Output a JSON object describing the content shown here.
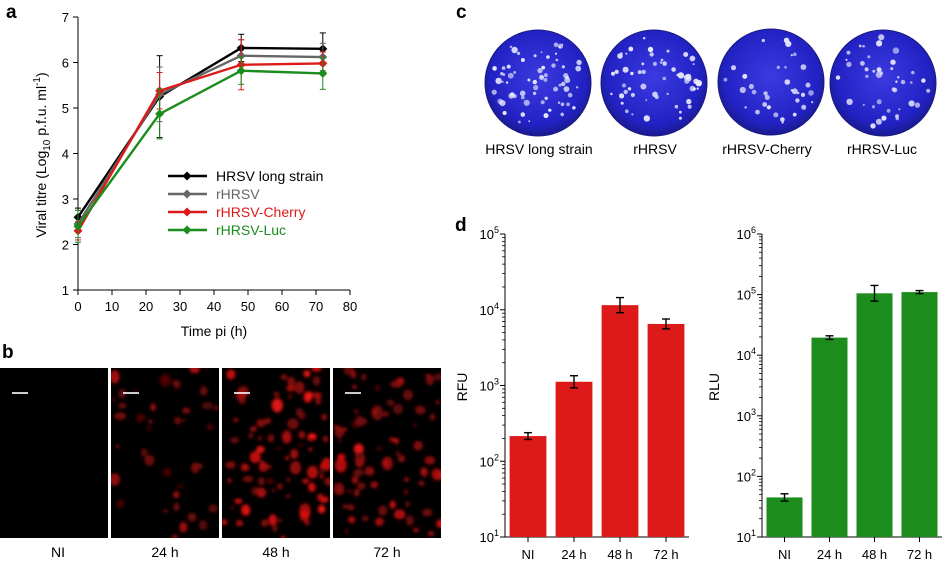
{
  "panels": {
    "a": "a",
    "b": "b",
    "c": "c",
    "d": "d"
  },
  "colors": {
    "black": "#000000",
    "gray": "#666666",
    "red": "#dd1a1a",
    "green": "#1c8c1c",
    "plate": "#2323c8"
  },
  "chart_data": [
    {
      "id": "a",
      "type": "line",
      "xlabel": "Time pi (h)",
      "ylabel": {
        "pre": "Viral titre (Log",
        "sub": "10",
        "mid": " p.f.u. ml",
        "sup": "-1",
        "post": ")"
      },
      "xlim": [
        0,
        80
      ],
      "ylim": [
        1,
        7
      ],
      "xticks": [
        0,
        10,
        20,
        30,
        40,
        50,
        60,
        70,
        80
      ],
      "yticks": [
        1,
        2,
        3,
        4,
        5,
        6,
        7
      ],
      "x": [
        0,
        24,
        48,
        72
      ],
      "legend_position": "center-right",
      "series": [
        {
          "name": "HRSV long strain",
          "color": "#000000",
          "values": [
            2.6,
            5.25,
            6.32,
            6.3
          ],
          "errors": [
            0.2,
            0.9,
            0.3,
            0.35
          ]
        },
        {
          "name": "rHRSV",
          "color": "#666666",
          "values": [
            2.45,
            5.3,
            6.15,
            6.12
          ],
          "errors": [
            0.3,
            0.6,
            0.35,
            0.3
          ]
        },
        {
          "name": "rHRSV-Cherry",
          "color": "#dd1a1a",
          "values": [
            2.3,
            5.38,
            5.95,
            5.98
          ],
          "errors": [
            0.2,
            0.4,
            0.55,
            0.25
          ]
        },
        {
          "name": "rHRSV-Luc",
          "color": "#1c8c1c",
          "values": [
            2.4,
            4.87,
            5.82,
            5.76
          ],
          "errors": [
            0.35,
            0.55,
            0.3,
            0.35
          ]
        }
      ]
    },
    {
      "id": "d-left",
      "type": "bar",
      "ylabel": "RFU",
      "yscale": "log",
      "ylim": [
        1,
        5
      ],
      "ytick_exponents": [
        "1",
        "2",
        "3",
        "4",
        "5"
      ],
      "categories": [
        "NI",
        "24 h",
        "48 h",
        "72 h"
      ],
      "values": [
        215,
        1120,
        11500,
        6500
      ],
      "errors_log": [
        0.045,
        0.08,
        0.1,
        0.065
      ],
      "color": "#dd1a1a"
    },
    {
      "id": "d-right",
      "type": "bar",
      "ylabel": "RLU",
      "yscale": "log",
      "ylim": [
        1,
        6
      ],
      "ytick_exponents": [
        "1",
        "2",
        "3",
        "4",
        "5",
        "6"
      ],
      "categories": [
        "NI",
        "24 h",
        "48 h",
        "72 h"
      ],
      "values": [
        45,
        19500,
        105000,
        110000
      ],
      "errors_log": [
        0.06,
        0.03,
        0.13,
        0.025
      ],
      "color": "#1c8c1c"
    }
  ],
  "microscopy": {
    "labels": [
      "NI",
      "24 h",
      "48 h",
      "72 h"
    ],
    "intensity": [
      0,
      0.45,
      0.95,
      0.85
    ]
  },
  "plates": {
    "labels": [
      "HRSV long strain",
      "rHRSV",
      "rHRSV-Cherry",
      "rHRSV-Luc"
    ],
    "plaque_density": [
      0.9,
      0.75,
      0.45,
      0.55
    ]
  }
}
